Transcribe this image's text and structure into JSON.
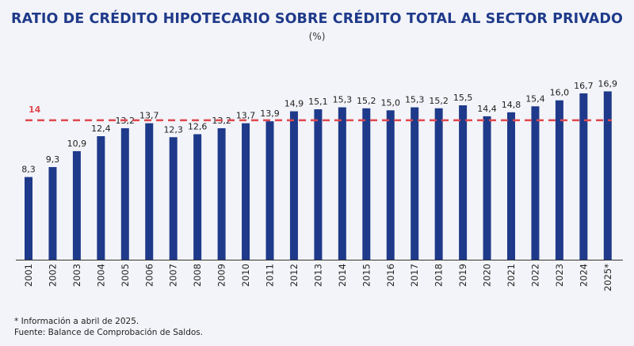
{
  "chart_data": {
    "type": "bar",
    "title": "RATIO DE CRÉDITO HIPOTECARIO SOBRE CRÉDITO TOTAL AL SECTOR PRIVADO",
    "subtitle": "(%)",
    "categories": [
      "2001",
      "2002",
      "2003",
      "2004",
      "2005",
      "2006",
      "2007",
      "2008",
      "2009",
      "2010",
      "2011",
      "2012",
      "2013",
      "2014",
      "2015",
      "2016",
      "2017",
      "2018",
      "2019",
      "2020",
      "2021",
      "2022",
      "2023",
      "2024",
      "2025*"
    ],
    "values": [
      8.3,
      9.3,
      10.9,
      12.4,
      13.2,
      13.7,
      12.3,
      12.6,
      13.2,
      13.7,
      13.9,
      14.9,
      15.1,
      15.3,
      15.2,
      15.0,
      15.3,
      15.2,
      15.5,
      14.4,
      14.8,
      15.4,
      16.0,
      16.7,
      16.9
    ],
    "value_labels": [
      "8,3",
      "9,3",
      "10,9",
      "12,4",
      "13,2",
      "13,7",
      "12,3",
      "12,6",
      "13,2",
      "13,7",
      "13,9",
      "14,9",
      "15,1",
      "15,3",
      "15,2",
      "15,0",
      "15,3",
      "15,2",
      "15,5",
      "14,4",
      "14,8",
      "15,4",
      "16,0",
      "16,7",
      "16,9"
    ],
    "reference_line": {
      "value": 14,
      "label": "14",
      "color": "#e0484e",
      "style": "dashed"
    },
    "bar_color": "#1f3a8a",
    "ylim": [
      0,
      17.5
    ],
    "grid": false,
    "legend": "none",
    "xlabel": "",
    "ylabel": ""
  },
  "notes": {
    "footnote": "* Información a abril de 2025.",
    "source": "Fuente: Balance de Comprobación de Saldos."
  }
}
